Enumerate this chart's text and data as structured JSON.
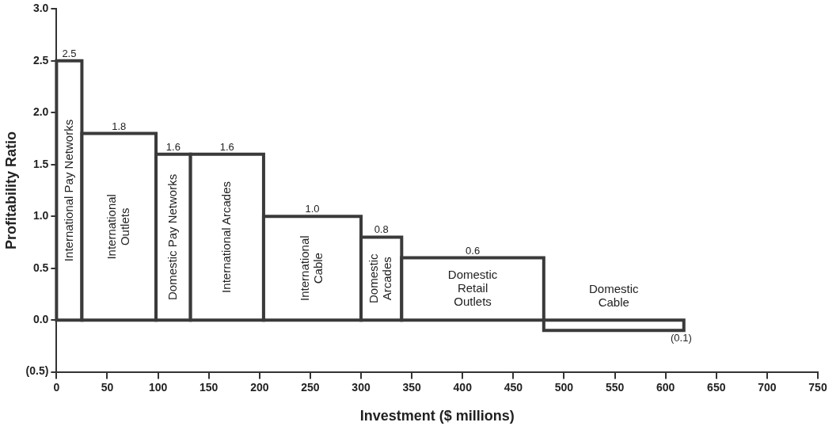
{
  "chart_data": {
    "type": "histogram",
    "xlabel": "Investment ($ millions)",
    "ylabel": "Profitability Ratio",
    "bins": [
      0,
      25,
      98,
      132,
      204,
      300,
      340,
      480,
      618
    ],
    "values": [
      2.5,
      1.8,
      1.6,
      1.6,
      1.0,
      0.8,
      0.6,
      -0.1
    ],
    "value_labels": [
      "2.5",
      "1.8",
      "1.6",
      "1.6",
      "1.0",
      "0.8",
      "0.6",
      "(0.1)"
    ],
    "color": "#3a3a3a",
    "xlim": [
      0,
      750
    ],
    "xticks": [
      0,
      50,
      100,
      150,
      200,
      250,
      300,
      350,
      400,
      450,
      500,
      550,
      600,
      650,
      700,
      750
    ],
    "ylim": [
      -0.5,
      3.0
    ],
    "yticks": [
      {
        "value": -0.5,
        "label": "(0.5)"
      },
      {
        "value": 0,
        "label": "0.0"
      },
      {
        "value": 0.5,
        "label": "0.5"
      },
      {
        "value": 1,
        "label": "1.0"
      },
      {
        "value": 1.5,
        "label": "1.5"
      },
      {
        "value": 2,
        "label": "2.0"
      },
      {
        "value": 2.5,
        "label": "2.5"
      },
      {
        "value": 3,
        "label": "3.0"
      }
    ],
    "grid": false,
    "legend": false,
    "annotations": [
      "International Pay Networks",
      "International\nOutlets",
      "Domestic Pay Networks",
      "International Arcades",
      "International\nCable",
      "Domestic\nArcades",
      "Domestic\nRetail\nOutlets",
      "Domestic\nCable"
    ]
  }
}
